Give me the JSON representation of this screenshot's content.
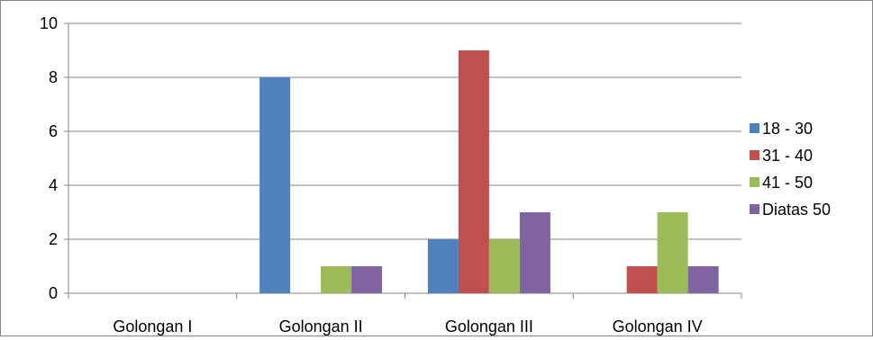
{
  "chart_data": {
    "type": "bar",
    "categories": [
      "Golongan I",
      "Golongan II",
      "Golongan III",
      "Golongan IV"
    ],
    "series": [
      {
        "name": "18 - 30",
        "values": [
          0,
          8,
          2,
          0
        ],
        "color": "#4F81BD"
      },
      {
        "name": "31 - 40",
        "values": [
          0,
          0,
          9,
          1
        ],
        "color": "#C0504D"
      },
      {
        "name": "41 - 50",
        "values": [
          0,
          1,
          2,
          3
        ],
        "color": "#9BBB59"
      },
      {
        "name": "Diatas 50",
        "values": [
          0,
          1,
          3,
          1
        ],
        "color": "#8064A2"
      }
    ],
    "ylim": [
      0,
      10
    ],
    "yticks": [
      0,
      2,
      4,
      6,
      8,
      10
    ],
    "grid": true,
    "legend": "right"
  }
}
